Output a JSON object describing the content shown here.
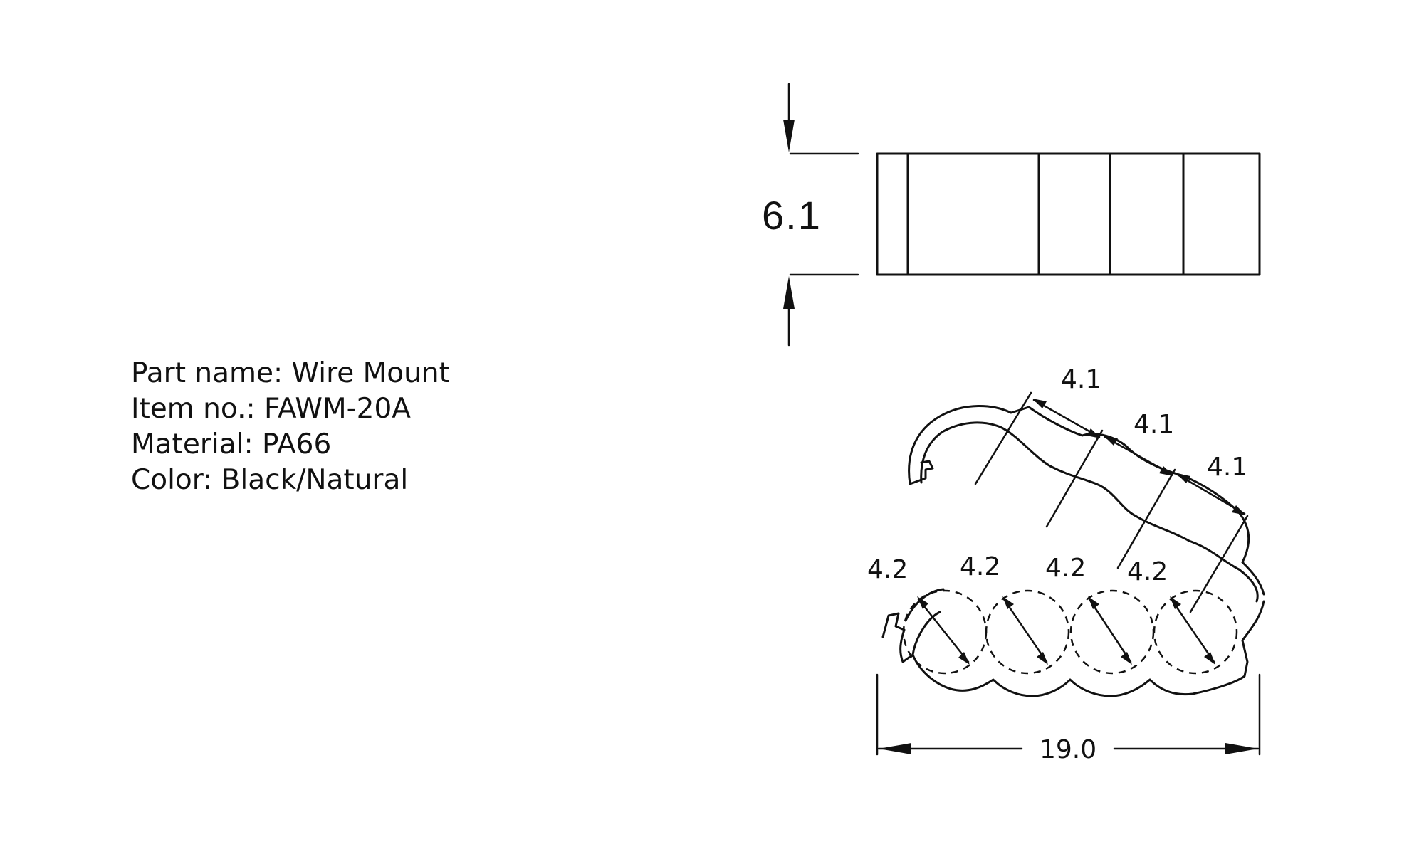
{
  "spec": {
    "part_name": "Part name: Wire Mount",
    "item_no": "Item no.: FAWM-20A",
    "material": "Material: PA66",
    "color": "Color: Black/Natural"
  },
  "dimensions": {
    "height": "6.1",
    "pitch": [
      "4.1",
      "4.1",
      "4.1"
    ],
    "diameters": [
      "4.2",
      "4.2",
      "4.2",
      "4.2"
    ],
    "width": "19.0"
  }
}
